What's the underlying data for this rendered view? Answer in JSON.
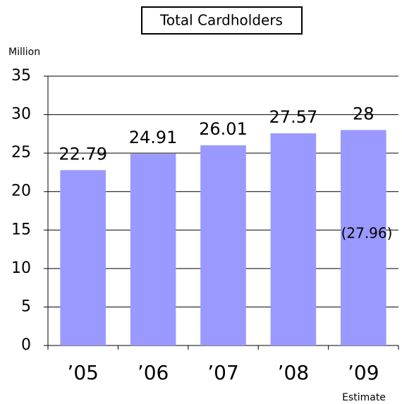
{
  "chart_data": {
    "type": "bar",
    "title": "Total Cardholders",
    "y_label": "Million",
    "categories": [
      "’05",
      "’06",
      "’07",
      "’08",
      "’09"
    ],
    "values": [
      22.79,
      24.91,
      26.01,
      27.57,
      28
    ],
    "color": "#9999ff",
    "ylim": [
      0,
      35
    ],
    "yticks": [
      0,
      5,
      10,
      15,
      20,
      25,
      30,
      35
    ],
    "grid": true,
    "annotations": [
      "(27.96)",
      "Estimate"
    ]
  }
}
